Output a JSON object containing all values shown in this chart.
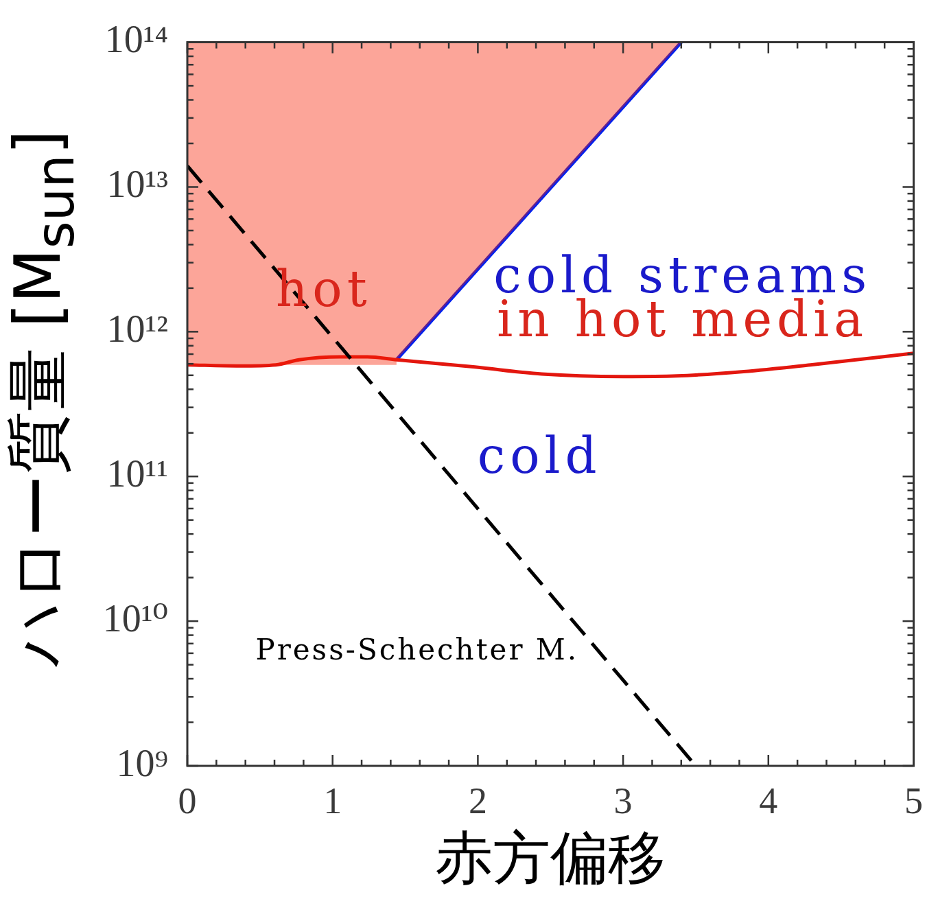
{
  "chart_data": {
    "type": "line",
    "xlabel": "赤方偏移",
    "ylabel": "ハロー質量 [M$_{sun}$]",
    "xlim": [
      0,
      5
    ],
    "ylim": [
      1000000000.0,
      100000000000000.0
    ],
    "log": "y",
    "grid": false,
    "legend": false,
    "marker": "none",
    "xticks": [
      0,
      {
        "value": 0.2,
        "label": null
      },
      {
        "value": 0.4,
        "label": null
      },
      {
        "value": 0.6,
        "label": null
      },
      {
        "value": 0.8,
        "label": null
      },
      1,
      {
        "value": 1.2,
        "label": null
      },
      {
        "value": 1.4,
        "label": null
      },
      {
        "value": 1.6,
        "label": null
      },
      {
        "value": 1.8,
        "label": null
      },
      2,
      {
        "value": 2.2,
        "label": null
      },
      {
        "value": 2.4,
        "label": null
      },
      {
        "value": 2.6,
        "label": null
      },
      {
        "value": 2.8,
        "label": null
      },
      3,
      {
        "value": 3.2,
        "label": null
      },
      {
        "value": 3.4,
        "label": null
      },
      {
        "value": 3.6,
        "label": null
      },
      {
        "value": 3.8,
        "label": null
      },
      4,
      {
        "value": 4.2,
        "label": null
      },
      {
        "value": 4.4,
        "label": null
      },
      {
        "value": 4.6,
        "label": null
      },
      {
        "value": 4.8,
        "label": null
      },
      5
    ],
    "yticks": [
      {
        "value": 1000000000.0,
        "label": "10⁹"
      },
      {
        "value": 2000000000.0,
        "label": null
      },
      {
        "value": 3000000000.0,
        "label": null
      },
      {
        "value": 4000000000.0,
        "label": null
      },
      {
        "value": 5000000000.0,
        "label": null
      },
      {
        "value": 6000000000.0,
        "label": null
      },
      {
        "value": 7000000000.0,
        "label": null
      },
      {
        "value": 8000000000.0,
        "label": null
      },
      {
        "value": 9000000000.0,
        "label": null
      },
      {
        "value": 10000000000.0,
        "label": "10¹⁰"
      },
      {
        "value": 20000000000.0,
        "label": null
      },
      {
        "value": 30000000000.0,
        "label": null
      },
      {
        "value": 40000000000.0,
        "label": null
      },
      {
        "value": 50000000000.0,
        "label": null
      },
      {
        "value": 60000000000.0,
        "label": null
      },
      {
        "value": 70000000000.0,
        "label": null
      },
      {
        "value": 80000000000.0,
        "label": null
      },
      {
        "value": 90000000000.0,
        "label": null
      },
      {
        "value": 100000000000.0,
        "label": "10¹¹"
      },
      {
        "value": 200000000000.0,
        "label": null
      },
      {
        "value": 300000000000.0,
        "label": null
      },
      {
        "value": 400000000000.0,
        "label": null
      },
      {
        "value": 500000000000.0,
        "label": null
      },
      {
        "value": 600000000000.0,
        "label": null
      },
      {
        "value": 700000000000.0,
        "label": null
      },
      {
        "value": 800000000000.0,
        "label": null
      },
      {
        "value": 900000000000.0,
        "label": null
      },
      {
        "value": 1000000000000.0,
        "label": "10¹²"
      },
      {
        "value": 2000000000000.0,
        "label": null
      },
      {
        "value": 3000000000000.0,
        "label": null
      },
      {
        "value": 4000000000000.0,
        "label": null
      },
      {
        "value": 5000000000000.0,
        "label": null
      },
      {
        "value": 6000000000000.0,
        "label": null
      },
      {
        "value": 7000000000000.0,
        "label": null
      },
      {
        "value": 8000000000000.0,
        "label": null
      },
      {
        "value": 9000000000000.0,
        "label": null
      },
      {
        "value": 10000000000000.0,
        "label": "10¹³"
      },
      {
        "value": 20000000000000.0,
        "label": null
      },
      {
        "value": 30000000000000.0,
        "label": null
      },
      {
        "value": 40000000000000.0,
        "label": null
      },
      {
        "value": 50000000000000.0,
        "label": null
      },
      {
        "value": 60000000000000.0,
        "label": null
      },
      {
        "value": 70000000000000.0,
        "label": null
      },
      {
        "value": 80000000000000.0,
        "label": null
      },
      {
        "value": 90000000000000.0,
        "label": null
      },
      {
        "value": 100000000000000.0,
        "label": "10¹⁴"
      }
    ],
    "series": [
      {
        "type": "line",
        "color": "#0021ee",
        "x": [
          1.44,
          3.4
        ],
        "values": [
          640000000000.0,
          100000000000000.0
        ]
      },
      {
        "type": "line",
        "color": "#e3170f",
        "x": [
          0,
          0.36,
          0.61,
          0.77,
          1.05,
          1.24,
          1.44,
          1.98,
          2.44,
          3.0,
          3.37,
          3.83,
          4.29,
          5.0
        ],
        "values": [
          590000000000.0,
          580000000000.0,
          590000000000.0,
          640000000000.0,
          670000000000.0,
          670000000000.0,
          640000000000.0,
          570000000000.0,
          510000000000.0,
          490000000000.0,
          495000000000.0,
          530000000000.0,
          590000000000.0,
          710000000000.0
        ]
      },
      {
        "type": "area",
        "color": "#fca597",
        "x": [
          0,
          0,
          1.44,
          1.44,
          3.4
        ],
        "values": [
          100000000000000.0,
          590000000000.0,
          590000000000.0,
          640000000000.0,
          100000000000000.0
        ]
      },
      {
        "type": "line",
        "name": "Press-Schechter M.",
        "color": "#000000",
        "line_style": "dashed",
        "x": [
          0,
          3.5
        ],
        "values": [
          14000000000000.0,
          1000000000.0
        ]
      }
    ],
    "annotations": [
      "hot",
      "cold streams",
      "in hot media",
      "cold"
    ]
  }
}
